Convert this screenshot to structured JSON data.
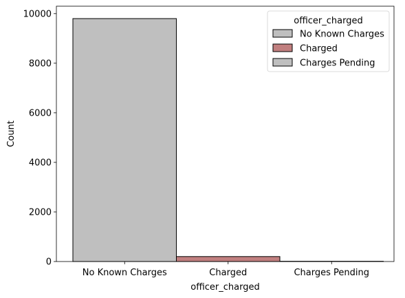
{
  "chart_data": {
    "type": "bar",
    "categories": [
      "No Known Charges",
      "Charged",
      "Charges Pending"
    ],
    "values": [
      9800,
      200,
      10
    ],
    "colors": [
      "#bfbfbf",
      "#c17f7f",
      "#bfbfbf"
    ],
    "xlabel": "officer_charged",
    "ylabel": "Count",
    "ylim": [
      0,
      10300
    ],
    "yticks": [
      0,
      2000,
      4000,
      6000,
      8000,
      10000
    ],
    "grid": false,
    "legend": {
      "title": "officer_charged",
      "placement": "top-right",
      "entries": [
        "No Known Charges",
        "Charged",
        "Charges Pending"
      ]
    }
  }
}
